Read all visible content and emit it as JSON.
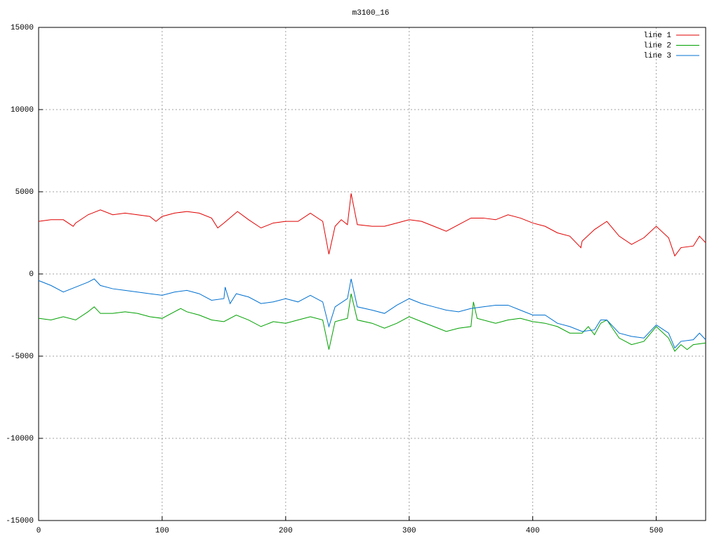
{
  "chart_data": {
    "type": "line",
    "title": "m3100_16",
    "xlim": [
      0,
      540
    ],
    "xticks": [
      0,
      100,
      200,
      300,
      400,
      500
    ],
    "ylim": [
      -15000,
      15000
    ],
    "yticks": [
      -15000,
      -10000,
      -5000,
      0,
      5000,
      10000,
      15000
    ],
    "grid": true,
    "legend": "top-right",
    "series": [
      {
        "name": "line 1",
        "color": "#e00000",
        "x": [
          0,
          10,
          20,
          28,
          30,
          40,
          50,
          60,
          70,
          80,
          90,
          95,
          100,
          110,
          120,
          130,
          140,
          145,
          150,
          161,
          170,
          180,
          190,
          200,
          210,
          220,
          230,
          235,
          240,
          245,
          250,
          253,
          258,
          270,
          280,
          290,
          300,
          310,
          320,
          330,
          340,
          350,
          360,
          370,
          380,
          390,
          400,
          410,
          420,
          430,
          439,
          440,
          450,
          460,
          470,
          480,
          490,
          500,
          510,
          515,
          520,
          530,
          535,
          540
        ],
        "values": [
          3200,
          3300,
          3300,
          2900,
          3100,
          3600,
          3900,
          3600,
          3700,
          3600,
          3500,
          3200,
          3500,
          3700,
          3800,
          3700,
          3400,
          2800,
          3100,
          3800,
          3300,
          2800,
          3100,
          3200,
          3200,
          3700,
          3200,
          1200,
          2900,
          3300,
          3000,
          4900,
          3000,
          2900,
          2900,
          3100,
          3300,
          3200,
          2900,
          2600,
          3000,
          3400,
          3400,
          3300,
          3600,
          3400,
          3100,
          2900,
          2500,
          2300,
          1600,
          2000,
          2700,
          3200,
          2300,
          1800,
          2200,
          2900,
          2200,
          1100,
          1600,
          1700,
          2300,
          1900
        ]
      },
      {
        "name": "line 2",
        "color": "#00a000",
        "x": [
          0,
          10,
          20,
          30,
          40,
          45,
          50,
          60,
          70,
          80,
          90,
          100,
          110,
          115,
          120,
          130,
          140,
          150,
          160,
          170,
          180,
          190,
          200,
          210,
          220,
          230,
          235,
          240,
          250,
          253,
          258,
          270,
          280,
          290,
          300,
          310,
          320,
          330,
          340,
          350,
          352,
          355,
          370,
          380,
          390,
          400,
          410,
          420,
          430,
          440,
          445,
          450,
          455,
          460,
          470,
          480,
          490,
          500,
          510,
          515,
          520,
          525,
          530,
          540
        ],
        "values": [
          -2700,
          -2800,
          -2600,
          -2800,
          -2300,
          -2000,
          -2400,
          -2400,
          -2300,
          -2400,
          -2600,
          -2700,
          -2300,
          -2100,
          -2300,
          -2500,
          -2800,
          -2900,
          -2500,
          -2800,
          -3200,
          -2900,
          -3000,
          -2800,
          -2600,
          -2800,
          -4600,
          -2900,
          -2700,
          -1200,
          -2800,
          -3000,
          -3300,
          -3000,
          -2600,
          -2900,
          -3200,
          -3500,
          -3300,
          -3200,
          -1700,
          -2700,
          -3000,
          -2800,
          -2700,
          -2900,
          -3000,
          -3200,
          -3600,
          -3600,
          -3200,
          -3700,
          -3000,
          -2800,
          -3900,
          -4300,
          -4100,
          -3200,
          -3900,
          -4700,
          -4300,
          -4600,
          -4300,
          -4200
        ]
      },
      {
        "name": "line 3",
        "color": "#0070d0",
        "x": [
          0,
          10,
          20,
          30,
          40,
          45,
          50,
          60,
          70,
          80,
          90,
          100,
          110,
          120,
          130,
          140,
          150,
          151,
          155,
          160,
          170,
          180,
          190,
          200,
          210,
          220,
          230,
          235,
          240,
          250,
          253,
          258,
          270,
          280,
          290,
          300,
          310,
          320,
          330,
          340,
          350,
          360,
          370,
          380,
          390,
          400,
          410,
          420,
          430,
          440,
          450,
          455,
          460,
          470,
          480,
          490,
          500,
          510,
          515,
          520,
          530,
          535,
          540
        ],
        "values": [
          -400,
          -700,
          -1100,
          -800,
          -500,
          -300,
          -700,
          -900,
          -1000,
          -1100,
          -1200,
          -1300,
          -1100,
          -1000,
          -1200,
          -1600,
          -1500,
          -800,
          -1800,
          -1200,
          -1400,
          -1800,
          -1700,
          -1500,
          -1700,
          -1300,
          -1700,
          -3200,
          -2000,
          -1500,
          -300,
          -2000,
          -2200,
          -2400,
          -1900,
          -1500,
          -1800,
          -2000,
          -2200,
          -2300,
          -2100,
          -2000,
          -1900,
          -1900,
          -2200,
          -2500,
          -2500,
          -3000,
          -3200,
          -3500,
          -3400,
          -2800,
          -2800,
          -3600,
          -3800,
          -3900,
          -3100,
          -3600,
          -4500,
          -4100,
          -4000,
          -3600,
          -4000
        ]
      }
    ]
  }
}
